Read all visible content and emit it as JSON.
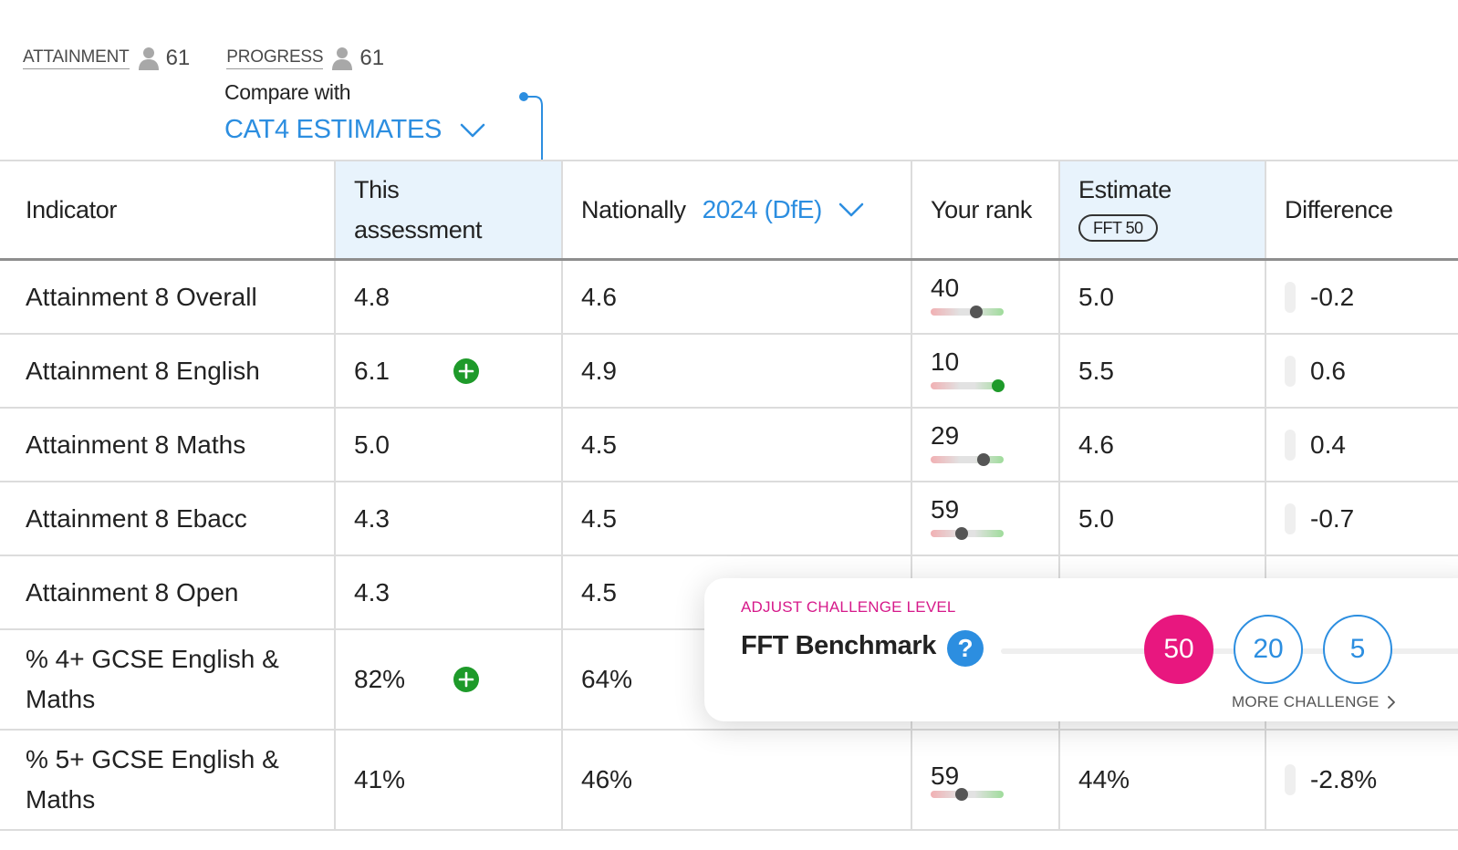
{
  "tabs": [
    {
      "label": "ATTAINMENT",
      "count": "61"
    },
    {
      "label": "PROGRESS",
      "count": "61"
    }
  ],
  "compare": {
    "label": "Compare with",
    "value": "CAT4 ESTIMATES"
  },
  "headers": {
    "indicator": "Indicator",
    "this_assessment_line1": "This",
    "this_assessment_line2": "assessment",
    "nationally": "Nationally",
    "nationally_year": "2024 (DfE)",
    "your_rank": "Your rank",
    "estimate": "Estimate",
    "estimate_badge": "FFT 50",
    "difference": "Difference"
  },
  "rows": [
    {
      "indicator": "Attainment 8 Overall",
      "this": "4.8",
      "national": "4.6",
      "rank": "40",
      "rank_position": 0.62,
      "estimate": "5.0",
      "difference": "-0.2"
    },
    {
      "indicator": "Attainment 8 English",
      "this": "6.1",
      "national": "4.9",
      "rank": "10",
      "rank_position": 0.92,
      "estimate": "5.5",
      "difference": "0.6"
    },
    {
      "indicator": "Attainment 8 Maths",
      "this": "5.0",
      "national": "4.5",
      "rank": "29",
      "rank_position": 0.72,
      "estimate": "4.6",
      "difference": "0.4"
    },
    {
      "indicator": "Attainment 8 Ebacc",
      "this": "4.3",
      "national": "4.5",
      "rank": "59",
      "rank_position": 0.42,
      "estimate": "5.0",
      "difference": "-0.7"
    },
    {
      "indicator": "Attainment 8 Open",
      "this": "4.3",
      "national": "4.5"
    },
    {
      "indicator_line1": "% 4+ GCSE English &",
      "indicator_line2": "Maths",
      "this": "82%",
      "national": "64%"
    },
    {
      "indicator_line1": "% 5+ GCSE English &",
      "indicator_line2": "Maths",
      "this": "41%",
      "national": "46%",
      "rank": "59",
      "rank_position": 0.42,
      "estimate": "44%",
      "difference": "-2.8%"
    }
  ],
  "challenge_panel": {
    "label": "ADJUST CHALLENGE LEVEL",
    "title": "FFT Benchmark",
    "help": "?",
    "options": [
      "50",
      "20",
      "5"
    ],
    "selected": "50",
    "more": "MORE CHALLENGE"
  },
  "colors": {
    "accent": "#2c8ee0",
    "highlight": "#e8f3fc",
    "pink": "#e8177f",
    "green": "#1e9a2a"
  }
}
